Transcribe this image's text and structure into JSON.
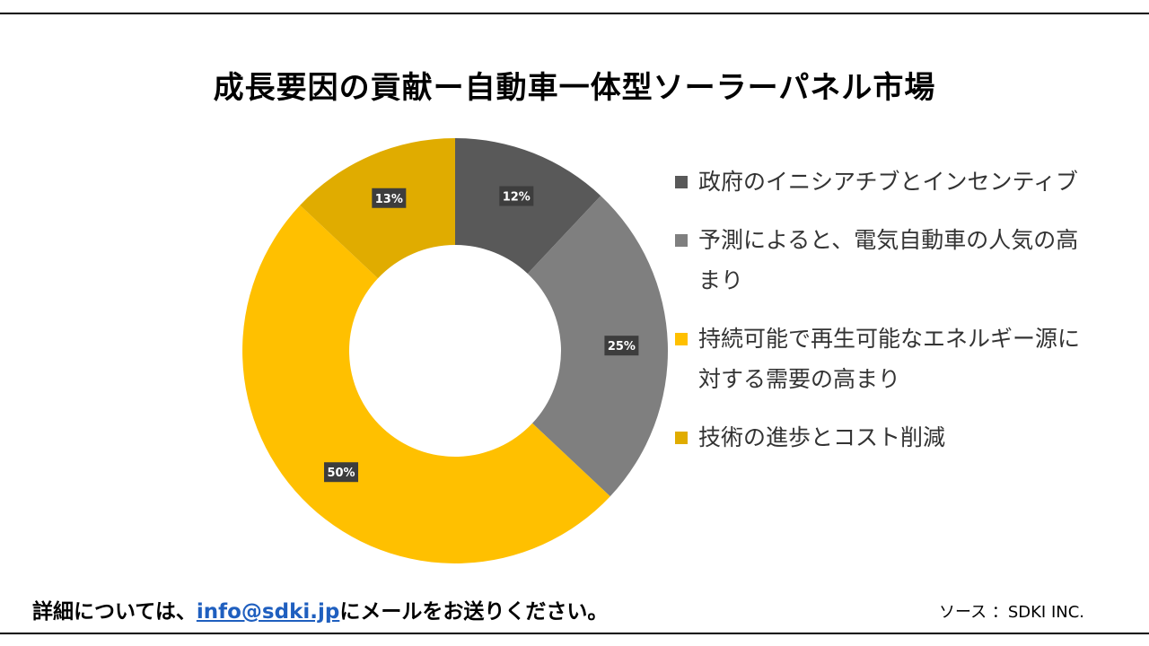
{
  "title": "成長要因の貢献ー自動車一体型ソーラーパネル市場",
  "chart_data": {
    "type": "pie",
    "categories": [
      "政府のイニシアチブとインセンティブ",
      "予測によると、電気自動車の人気の高まり",
      "持続可能で再生可能なエネルギー源に対する需要の高まり",
      "技術の進歩とコスト削減"
    ],
    "values": [
      12,
      25,
      50,
      13
    ],
    "value_labels": [
      "12%",
      "25%",
      "50%",
      "13%"
    ],
    "colors": [
      "#595959",
      "#7f7f7f",
      "#ffc000",
      "#e0ac00"
    ],
    "donut": true,
    "legend": "right"
  },
  "footer": {
    "contact_prefix": "詳細については、",
    "email": "info@sdki.jp",
    "contact_suffix": "にメールをお送りください。",
    "source": "ソース ：SDKI INC."
  }
}
